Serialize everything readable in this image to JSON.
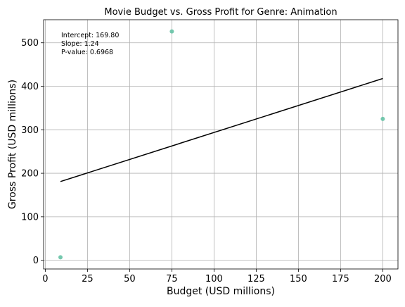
{
  "chart_data": {
    "type": "scatter",
    "title": "Movie Budget vs. Gross Profit for Genre: Animation",
    "xlabel": "Budget (USD millions)",
    "ylabel": "Gross Profit (USD millions)",
    "xlim": [
      -1,
      209
    ],
    "ylim": [
      -20,
      553
    ],
    "xticks": [
      0,
      25,
      50,
      75,
      100,
      125,
      150,
      175,
      200
    ],
    "yticks": [
      0,
      100,
      200,
      300,
      400,
      500
    ],
    "grid": true,
    "points": [
      {
        "x": 9,
        "y": 7
      },
      {
        "x": 75,
        "y": 526
      },
      {
        "x": 200,
        "y": 325
      }
    ],
    "point_color": "#66c2a5",
    "regression": {
      "intercept": 169.8,
      "slope": 1.24,
      "x_range": [
        9,
        200
      ],
      "color": "#000000"
    },
    "annotations": [
      "Intercept: 169.80",
      "Slope: 1.24",
      "P-value: 0.6968"
    ]
  }
}
